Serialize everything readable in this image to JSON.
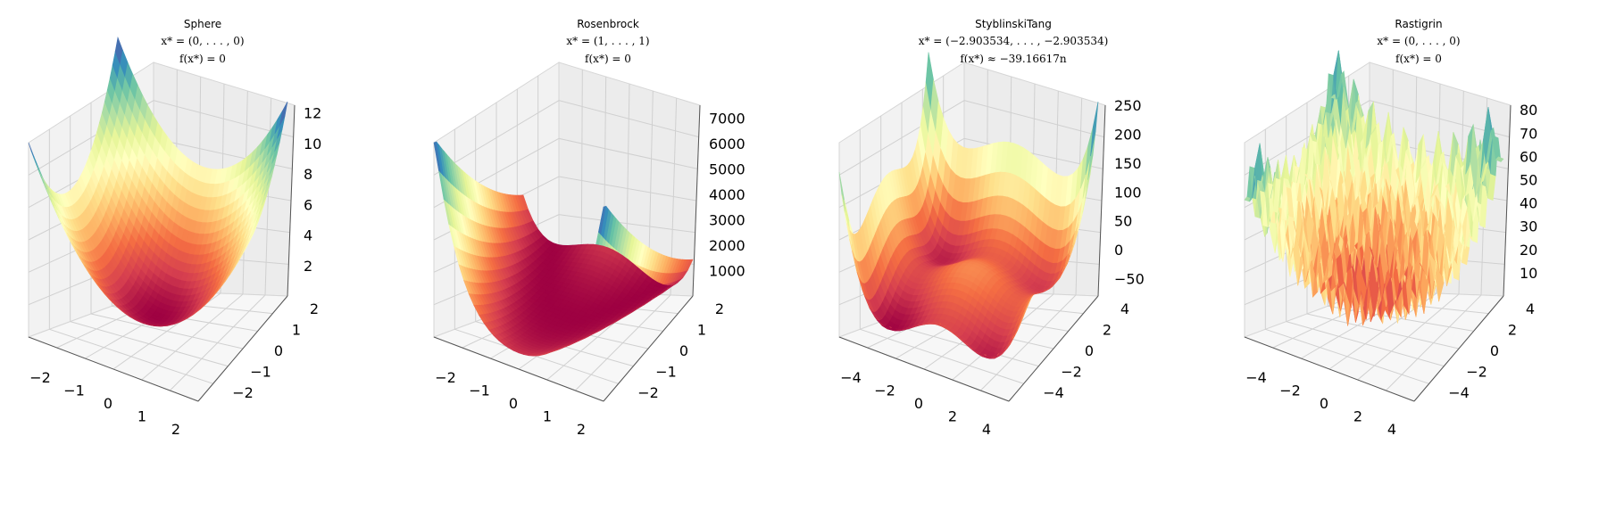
{
  "chart_data": [
    {
      "type": "surface3d",
      "title": "Sphere",
      "subtitle_lines": [
        "x* = (0, . . . , 0)",
        "f(x*) = 0"
      ],
      "function": "sphere",
      "x_range": [
        -2.5,
        2.5
      ],
      "y_range": [
        -2.5,
        2.5
      ],
      "zlim": [
        0,
        12.5
      ],
      "x_ticks": [
        "−2",
        "−1",
        "0",
        "1",
        "2"
      ],
      "y_ticks": [
        "−2",
        "−1",
        "0",
        "1",
        "2"
      ],
      "z_ticks": [
        "2",
        "4",
        "6",
        "8",
        "10",
        "12"
      ],
      "colormap": "Spectral",
      "grid": true
    },
    {
      "type": "surface3d",
      "title": "Rosenbrock",
      "subtitle_lines": [
        "x* = (1, . . . , 1)",
        "f(x*) = 0"
      ],
      "function": "rosenbrock",
      "x_range": [
        -2.5,
        2.5
      ],
      "y_range": [
        -2.5,
        2.5
      ],
      "zlim": [
        0,
        7500
      ],
      "x_ticks": [
        "−2",
        "−1",
        "0",
        "1",
        "2"
      ],
      "y_ticks": [
        "−2",
        "−1",
        "0",
        "1",
        "2"
      ],
      "z_ticks": [
        "1000",
        "2000",
        "3000",
        "4000",
        "5000",
        "6000",
        "7000"
      ],
      "colormap": "Spectral",
      "grid": true
    },
    {
      "type": "surface3d",
      "title": "StyblinskiTang",
      "subtitle_lines": [
        "x* = (−2.903534, . . . , −2.903534)",
        "f(x*) ≈ −39.16617n"
      ],
      "function": "styblinski_tang",
      "x_range": [
        -5,
        5
      ],
      "y_range": [
        -5,
        5
      ],
      "zlim": [
        -80,
        250
      ],
      "x_ticks": [
        "−4",
        "−2",
        "0",
        "2",
        "4"
      ],
      "y_ticks": [
        "−4",
        "−2",
        "0",
        "2",
        "4"
      ],
      "z_ticks": [
        "−50",
        "0",
        "50",
        "100",
        "150",
        "200",
        "250"
      ],
      "colormap": "Spectral",
      "grid": true
    },
    {
      "type": "surface3d",
      "title": "Rastigrin",
      "subtitle_lines": [
        "x* = (0, . . . , 0)",
        "f(x*) = 0"
      ],
      "function": "rastrigin",
      "x_range": [
        -5.12,
        5.12
      ],
      "y_range": [
        -5.12,
        5.12
      ],
      "zlim": [
        0,
        82
      ],
      "x_ticks": [
        "−4",
        "−2",
        "0",
        "2",
        "4"
      ],
      "y_ticks": [
        "−4",
        "−2",
        "0",
        "2",
        "4"
      ],
      "z_ticks": [
        "10",
        "20",
        "30",
        "40",
        "50",
        "60",
        "70",
        "80"
      ],
      "colormap": "Spectral",
      "grid": true
    }
  ]
}
